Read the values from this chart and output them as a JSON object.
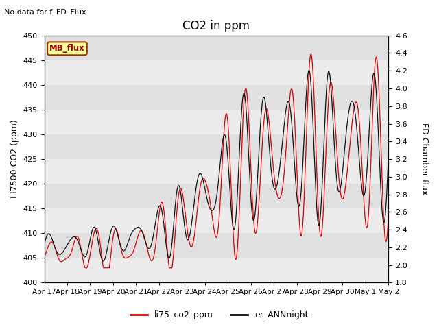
{
  "title": "CO2 in ppm",
  "ylabel_left": "LI7500 CO2 (ppm)",
  "ylabel_right": "FD Chamber flux",
  "ylim_left": [
    400,
    450
  ],
  "ylim_right": [
    1.8,
    4.6
  ],
  "yticks_left": [
    400,
    405,
    410,
    415,
    420,
    425,
    430,
    435,
    440,
    445,
    450
  ],
  "yticks_right": [
    1.8,
    2.0,
    2.2,
    2.4,
    2.6,
    2.8,
    3.0,
    3.2,
    3.4,
    3.6,
    3.8,
    4.0,
    4.2,
    4.4,
    4.6
  ],
  "xtick_labels": [
    "Apr 17",
    "Apr 18",
    "Apr 19",
    "Apr 20",
    "Apr 21",
    "Apr 22",
    "Apr 23",
    "Apr 24",
    "Apr 25",
    "Apr 26",
    "Apr 27",
    "Apr 28",
    "Apr 29",
    "Apr 30",
    "May 1",
    "May 2"
  ],
  "annotation_text": "No data for f_FD_Flux",
  "mb_flux_label": "MB_flux",
  "legend_labels": [
    "li75_co2_ppm",
    "er_ANNnight"
  ],
  "line_colors": [
    "#dd0000",
    "#111111"
  ],
  "background_color": "#e0e0e0",
  "band_color": "#ebebeb",
  "title_fontsize": 12,
  "axis_fontsize": 9,
  "tick_fontsize": 8
}
